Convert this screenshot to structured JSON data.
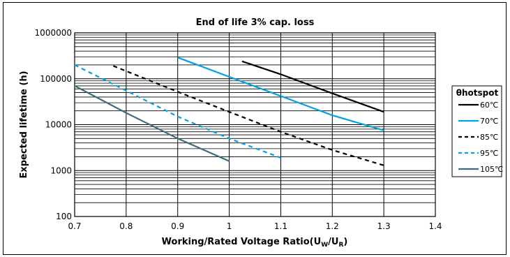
{
  "chart_data": {
    "type": "line",
    "title": "End of life 3% cap. loss",
    "ylabel": "Expected lifetime (h)",
    "xlabel": {
      "prefix": "Working/Rated Voltage Ratio(U",
      "sub1": "W",
      "mid": "/U",
      "sub2": "R",
      "suffix": ")"
    },
    "xlim": [
      0.7,
      1.4
    ],
    "ylim": [
      100,
      1000000
    ],
    "yscale": "log",
    "grid": true,
    "legend_position": "right",
    "x_ticks": [
      "0.7",
      "0.8",
      "0.9",
      "1",
      "1.1",
      "1.2",
      "1.3",
      "1.4"
    ],
    "y_ticks": [
      "100",
      "1000",
      "10000",
      "100000",
      "1000000"
    ],
    "legend_title": "θhotspot",
    "series": [
      {
        "name": "60℃",
        "color": "#000000",
        "dash": false,
        "x": [
          1.025,
          1.1,
          1.2,
          1.3
        ],
        "y": [
          240000,
          125000,
          48000,
          19000
        ]
      },
      {
        "name": "70℃",
        "color": "#00a0e6",
        "dash": false,
        "x": [
          0.9,
          1.0,
          1.1,
          1.2,
          1.3
        ],
        "y": [
          290000,
          110000,
          42000,
          16000,
          7500
        ]
      },
      {
        "name": "85℃",
        "color": "#000000",
        "dash": true,
        "x": [
          0.775,
          0.9,
          1.0,
          1.1,
          1.2,
          1.3
        ],
        "y": [
          190000,
          52000,
          19000,
          7000,
          2800,
          1300
        ]
      },
      {
        "name": "95℃",
        "color": "#00a0e6",
        "dash": true,
        "x": [
          0.7,
          0.8,
          0.9,
          1.0,
          1.1
        ],
        "y": [
          200000,
          55000,
          15000,
          5000,
          1900
        ]
      },
      {
        "name": "105℃",
        "color": "#3a6b7e",
        "dash": false,
        "x": [
          0.7,
          0.8,
          0.9,
          1.0
        ],
        "y": [
          70000,
          18000,
          5000,
          1600
        ]
      }
    ]
  }
}
